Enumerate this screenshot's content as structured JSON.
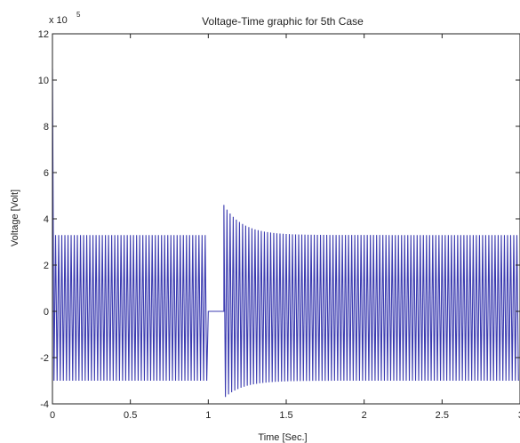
{
  "chart_data": {
    "type": "line",
    "title": "Voltage-Time graphic for 5th Case",
    "xlabel": "Time [Sec.]",
    "ylabel": "Voltage [Volt]",
    "y_exponent_label": "x 10",
    "y_exponent_power": "5",
    "xlim": [
      0,
      3
    ],
    "ylim": [
      -4,
      12
    ],
    "x_ticks": [
      0,
      0.5,
      1,
      1.5,
      2,
      2.5,
      3
    ],
    "x_tick_labels": [
      "0",
      "0.5",
      "1",
      "1.5",
      "2",
      "2.5",
      "3"
    ],
    "y_ticks": [
      -4,
      -2,
      0,
      2,
      4,
      6,
      8,
      10,
      12
    ],
    "y_tick_labels": [
      "-4",
      "-2",
      "0",
      "2",
      "4",
      "6",
      "8",
      "10",
      "12"
    ],
    "grid": false,
    "line_color": "#3b3bb0",
    "series": [
      {
        "segments": [
          {
            "x_start": 0,
            "x_end": 1.0,
            "kind": "oscillation",
            "upper": 3.3,
            "lower": -3.0,
            "initial_spike": 10.5,
            "frequency_hz": 50
          },
          {
            "x_start": 1.0,
            "x_end": 1.1,
            "kind": "flat",
            "value": 0
          },
          {
            "x_start": 1.1,
            "x_end": 3.0,
            "kind": "oscillation",
            "peak_upper": 4.6,
            "peak_lower": -3.7,
            "upper": 3.3,
            "lower": -3.0,
            "frequency_hz": 50
          }
        ]
      }
    ]
  }
}
